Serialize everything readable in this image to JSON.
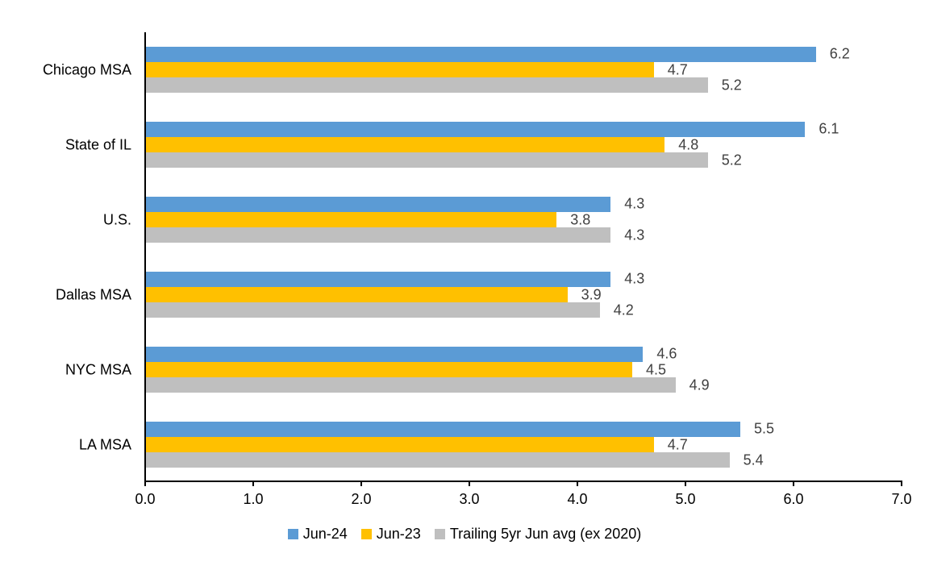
{
  "chart_data": {
    "type": "bar",
    "orientation": "horizontal",
    "title": "",
    "categories": [
      "Chicago MSA",
      "State of IL",
      "U.S.",
      "Dallas MSA",
      "NYC MSA",
      "LA MSA"
    ],
    "series": [
      {
        "name": "Jun-24",
        "color": "#5B9BD5",
        "values": [
          6.2,
          6.1,
          4.3,
          4.3,
          4.6,
          5.5
        ]
      },
      {
        "name": "Jun-23",
        "color": "#FFC000",
        "values": [
          4.7,
          4.8,
          3.8,
          3.9,
          4.5,
          4.7
        ]
      },
      {
        "name": "Trailing 5yr Jun avg (ex 2020)",
        "color": "#BFBFBF",
        "values": [
          5.2,
          5.2,
          4.3,
          4.2,
          4.9,
          5.4
        ]
      }
    ],
    "x_axis": {
      "min": 0,
      "max": 7,
      "step": 1,
      "tick_labels": [
        "0.0",
        "1.0",
        "2.0",
        "3.0",
        "4.0",
        "5.0",
        "6.0",
        "7.0"
      ]
    },
    "data_labels": true,
    "data_label_format": "0.0",
    "legend_position": "bottom",
    "grid": false
  },
  "style": {
    "data_label_color": "#404040",
    "axis_color": "#000000",
    "text_color": "#000000",
    "background": "#FFFFFF"
  }
}
